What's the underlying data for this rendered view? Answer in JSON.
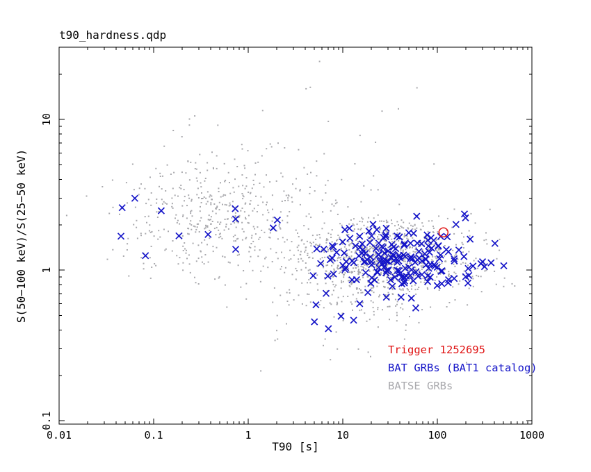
{
  "chart_data": {
    "type": "scatter",
    "title": "t90_hardness.qdp",
    "xlabel": "T90 [s]",
    "ylabel": "S(50−100 keV)/S(25−50 keV)",
    "xscale": "log",
    "yscale": "log",
    "xlim": [
      0.01,
      1000
    ],
    "ylim": [
      0.095,
      30.2
    ],
    "grid": false,
    "x_ticks": [
      {
        "value": 0.01,
        "label": "0.01"
      },
      {
        "value": 0.1,
        "label": "0.1"
      },
      {
        "value": 1,
        "label": "1"
      },
      {
        "value": 10,
        "label": "10"
      },
      {
        "value": 100,
        "label": "100"
      },
      {
        "value": 1000,
        "label": "1000"
      }
    ],
    "y_ticks": [
      {
        "value": 0.1,
        "label": "0.1"
      },
      {
        "value": 1,
        "label": "1"
      },
      {
        "value": 10,
        "label": "10"
      }
    ],
    "legend": {
      "position": "bottom-right-inside",
      "entries": [
        "Trigger 1252695",
        "BAT GRBs (BAT1 catalog)",
        "BATSE GRBs"
      ]
    },
    "series": [
      {
        "name": "BATSE GRBs",
        "marker": "dot",
        "color": "#a9a9ad",
        "count": 1610,
        "clusters": [
          {
            "n": 1000,
            "log_t90_mean": 1.45,
            "log_t90_sd": 0.45,
            "log_hr_mean": 0.06,
            "log_hr_sd": 0.14
          },
          {
            "n": 420,
            "log_t90_mean": -0.35,
            "log_t90_sd": 0.5,
            "log_hr_mean": 0.33,
            "log_hr_sd": 0.18
          },
          {
            "n": 130,
            "log_t90_mean": 0.35,
            "log_t90_sd": 0.8,
            "log_hr_mean": 0.52,
            "log_hr_sd": 0.3
          },
          {
            "n": 60,
            "log_t90_mean": 1.3,
            "log_t90_sd": 0.7,
            "log_hr_mean": -0.25,
            "log_hr_sd": 0.18
          }
        ]
      },
      {
        "name": "BAT GRBs (BAT1 catalog)",
        "marker": "x",
        "color": "#1414c8",
        "count": 204,
        "clusters": [
          {
            "n": 185,
            "log_t90_mean": 1.55,
            "log_t90_sd": 0.45,
            "log_hr_mean": 0.07,
            "log_hr_sd": 0.105
          },
          {
            "n": 11,
            "log_t90_mean": -0.55,
            "log_t90_sd": 0.45,
            "log_hr_mean": 0.3,
            "log_hr_sd": 0.1
          },
          {
            "n": 8,
            "log_t90_mean": 1.3,
            "log_t90_sd": 0.35,
            "log_hr_mean": -0.28,
            "log_hr_sd": 0.06
          }
        ]
      },
      {
        "name": "Trigger 1252695",
        "marker": "open-circle",
        "color": "#e01414",
        "points": [
          {
            "t90": 116,
            "hardness": 1.78
          }
        ]
      }
    ]
  }
}
